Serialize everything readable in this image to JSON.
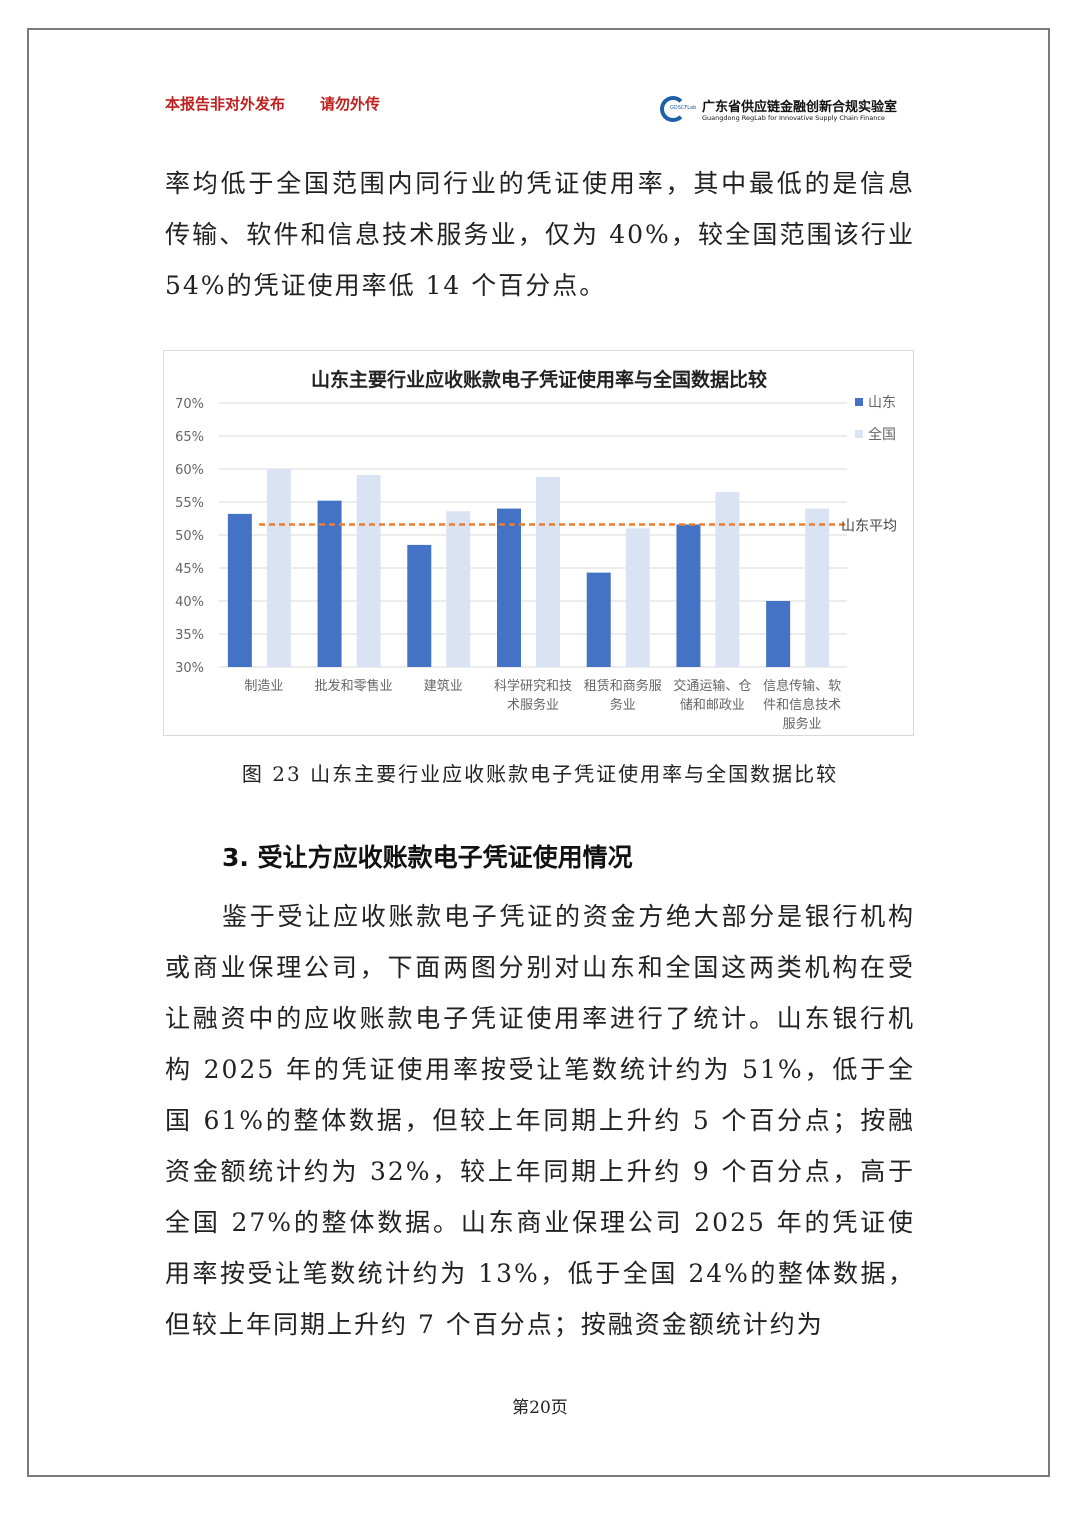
{
  "header": {
    "notice1": "本报告非对外发布",
    "notice2": "请勿外传",
    "logo_cn": "广东省供应链金融创新合规实验室",
    "logo_en": "Guangdong RegLab for Innovative Supply Chain Finance",
    "logo_small": "GDSCFLab"
  },
  "para1": "率均低于全国范围内同行业的凭证使用率，其中最低的是信息传输、软件和信息技术服务业，仅为 40%，较全国范围该行业 54%的凭证使用率低 14 个百分点。",
  "chart_data": {
    "type": "bar",
    "title": "山东主要行业应收账款电子凭证使用率与全国数据比较",
    "categories": [
      "制造业",
      "批发和零售业",
      "建筑业",
      "科学研究和技术服务业",
      "租赁和商务服务业",
      "交通运输、仓储和邮政业",
      "信息传输、软件和信息技术服务业"
    ],
    "category_lines": [
      [
        "制造业"
      ],
      [
        "批发和零售业"
      ],
      [
        "建筑业"
      ],
      [
        "科学研究和技",
        "术服务业"
      ],
      [
        "租赁和商务服",
        "务业"
      ],
      [
        "交通运输、仓",
        "储和邮政业"
      ],
      [
        "信息传输、软",
        "件和信息技术",
        "服务业"
      ]
    ],
    "series": [
      {
        "name": "山东",
        "color": "#4472c4",
        "values": [
          53.2,
          55.2,
          48.5,
          54.0,
          44.3,
          51.6,
          40.0
        ]
      },
      {
        "name": "全国",
        "color": "#dae3f3",
        "values": [
          60.0,
          59.1,
          53.6,
          58.8,
          51.0,
          56.5,
          54.0
        ]
      }
    ],
    "reference_line": {
      "name": "山东平均",
      "value": 51.6,
      "color": "#ed7d31",
      "style": "dashed"
    },
    "ylim": [
      30,
      70
    ],
    "yticks": [
      "30%",
      "35%",
      "40%",
      "45%",
      "50%",
      "55%",
      "60%",
      "65%",
      "70%"
    ],
    "grid": true,
    "legend": "right"
  },
  "caption": "图 23  山东主要行业应收账款电子凭证使用率与全国数据比较",
  "section_heading": "3.  受让方应收账款电子凭证使用情况",
  "para2": "鉴于受让应收账款电子凭证的资金方绝大部分是银行机构或商业保理公司，下面两图分别对山东和全国这两类机构在受让融资中的应收账款电子凭证使用率进行了统计。山东银行机构 2025 年的凭证使用率按受让笔数统计约为 51%，低于全国 61%的整体数据，但较上年同期上升约 5 个百分点；按融资金额统计约为 32%，较上年同期上升约 9 个百分点，高于全国 27%的整体数据。山东商业保理公司 2025 年的凭证使用率按受让笔数统计约为 13%，低于全国 24%的整体数据，但较上年同期上升约 7 个百分点；按融资金额统计约为",
  "page_number": "第20页"
}
